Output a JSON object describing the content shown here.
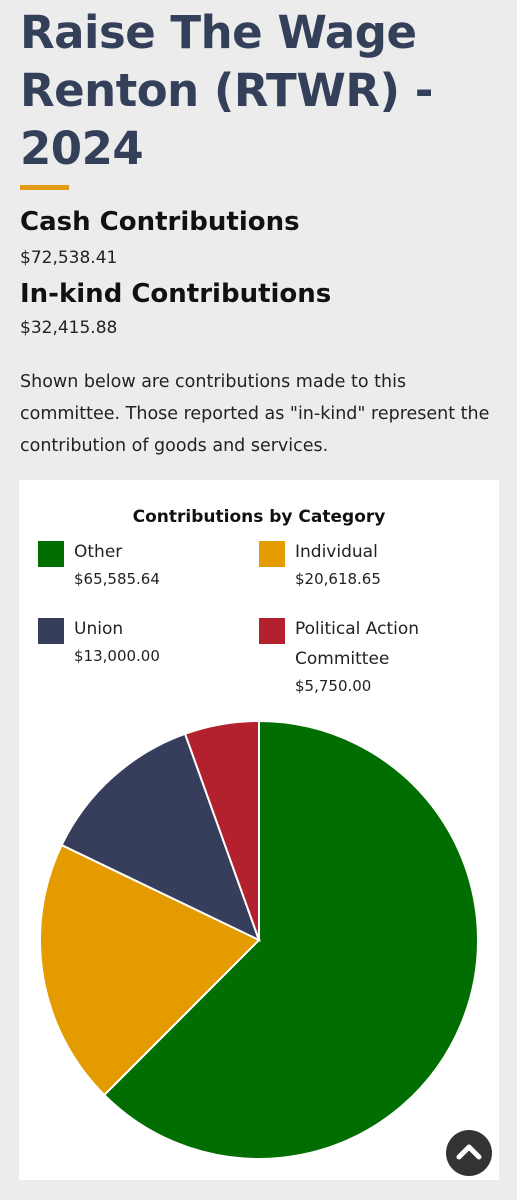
{
  "page": {
    "title": "Raise The Wage Renton (RTWR) - 2024",
    "cash": {
      "heading": "Cash Contributions",
      "amount": "$72,538.41"
    },
    "inkind": {
      "heading": "In-kind Contributions",
      "amount": "$32,415.88"
    },
    "description": "Shown below are contributions made to this committee. Those reported as \"in-kind\" represent the contribution of goods and services."
  },
  "chart_data": {
    "type": "pie",
    "title": "Contributions by Category",
    "legend_placement": "top",
    "slices": [
      {
        "label": "Other",
        "value": 65585.64,
        "display_value": "$65,585.64",
        "color": "#006e00"
      },
      {
        "label": "Individual",
        "value": 20618.65,
        "display_value": "$20,618.65",
        "color": "#e39b00"
      },
      {
        "label": "Union",
        "value": 13000.0,
        "display_value": "$13,000.00",
        "color": "#363e5c"
      },
      {
        "label": "Political Action Committee",
        "value": 5750.0,
        "display_value": "$5,750.00",
        "color": "#b3202e"
      }
    ]
  },
  "controls": {
    "scroll_top_icon": "chevron-up-icon"
  }
}
